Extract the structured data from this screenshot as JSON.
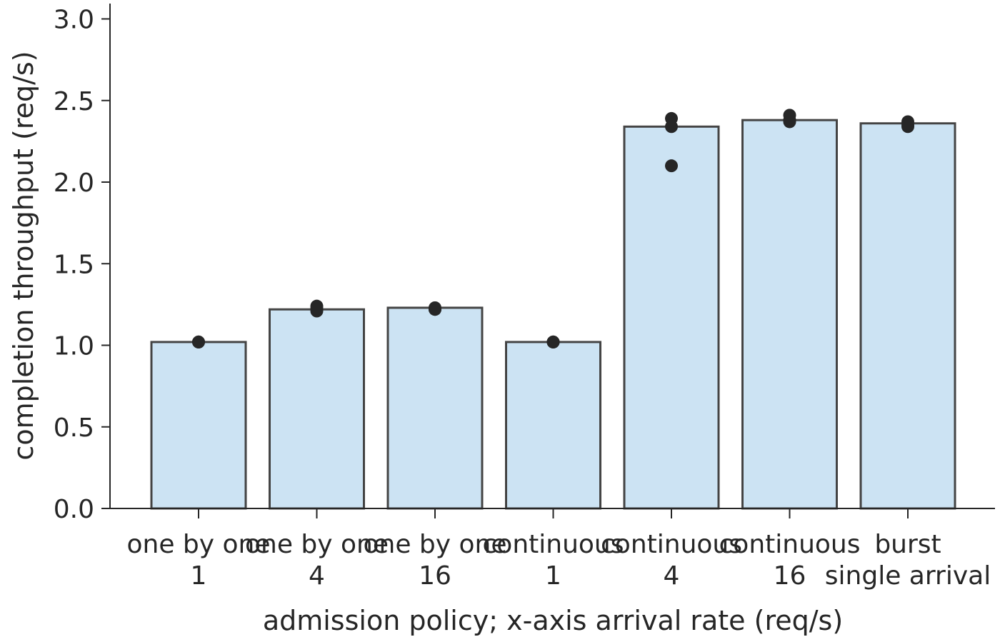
{
  "chart_data": {
    "type": "bar",
    "categories": [
      {
        "line1": "one by one",
        "line2": "1"
      },
      {
        "line1": "one by one",
        "line2": "4"
      },
      {
        "line1": "one by one",
        "line2": "16"
      },
      {
        "line1": "continuous",
        "line2": "1"
      },
      {
        "line1": "continuous",
        "line2": "4"
      },
      {
        "line1": "continuous",
        "line2": "16"
      },
      {
        "line1": "burst",
        "line2": "single arrival"
      }
    ],
    "values": [
      1.02,
      1.22,
      1.23,
      1.02,
      2.34,
      2.38,
      2.36
    ],
    "points": [
      [
        1.02,
        1.02,
        1.02
      ],
      [
        1.24,
        1.21,
        1.23
      ],
      [
        1.23,
        1.22,
        1.22
      ],
      [
        1.02,
        1.02,
        1.02
      ],
      [
        2.39,
        2.34,
        2.1
      ],
      [
        2.41,
        2.37,
        2.38
      ],
      [
        2.37,
        2.34,
        2.35
      ]
    ],
    "xlabel": "admission policy; x-axis arrival rate (req/s)",
    "ylabel": "completion throughput (req/s)",
    "ylim": [
      0,
      3.1
    ],
    "yticks": [
      "0.0",
      "0.5",
      "1.0",
      "1.5",
      "2.0",
      "2.5",
      "3.0"
    ],
    "bar_color": "#cce3f3",
    "bar_edge_color": "#444444",
    "point_color": "#262626",
    "grid": false
  }
}
